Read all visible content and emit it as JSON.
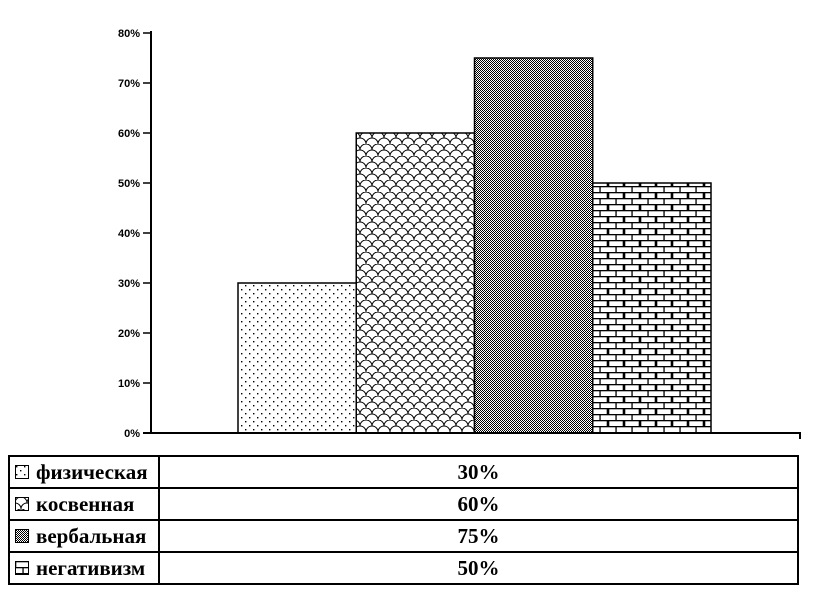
{
  "chart_data": {
    "type": "bar",
    "categories": [
      "физическая",
      "косвенная",
      "вербальная",
      "негативизм"
    ],
    "values": [
      30,
      60,
      75,
      50
    ],
    "value_labels": [
      "30%",
      "60%",
      "75%",
      "50%"
    ],
    "title": "",
    "xlabel": "",
    "ylabel": "",
    "ylim": [
      0,
      80
    ],
    "ytick_step": 10,
    "yticks": [
      "0%",
      "10%",
      "20%",
      "30%",
      "40%",
      "50%",
      "60%",
      "70%",
      "80%"
    ],
    "grid": false,
    "legend_position": "bottom-table",
    "bar_fill_patterns": [
      "dots-pattern",
      "scales-pattern",
      "dither-pattern",
      "bricks-pattern"
    ]
  },
  "legend_table": {
    "rows": [
      {
        "label": "физическая",
        "value": "30%",
        "pattern": "dots-pattern"
      },
      {
        "label": "косвенная",
        "value": "60%",
        "pattern": "scales-pattern"
      },
      {
        "label": "вербальная",
        "value": "75%",
        "pattern": "dither-pattern"
      },
      {
        "label": "негативизм",
        "value": "50%",
        "pattern": "bricks-pattern"
      }
    ]
  },
  "colors": {
    "foreground": "#000000",
    "background": "#ffffff"
  }
}
